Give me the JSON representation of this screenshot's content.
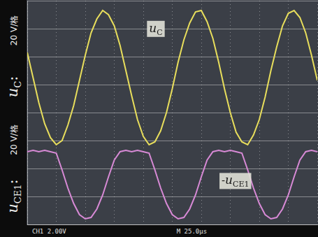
{
  "chart_data": {
    "type": "line",
    "x": [
      0,
      5,
      10,
      15,
      20,
      25,
      30,
      35,
      40,
      45,
      50,
      55,
      60,
      65,
      70,
      75,
      80,
      85,
      90,
      95,
      100,
      105,
      110,
      115,
      120,
      125,
      130,
      135,
      140,
      145,
      150,
      155,
      160,
      165,
      170,
      175,
      180,
      185,
      190,
      195,
      200,
      205,
      210,
      215,
      220,
      225,
      230,
      235,
      240,
      245,
      250
    ],
    "series": [
      {
        "name": "uC",
        "color": "#e8de5c",
        "values": [
          43,
          25,
          7,
          -8,
          -18,
          -23,
          -20,
          -9,
          5,
          23,
          41,
          57,
          67,
          73,
          70,
          62,
          48,
          30,
          12,
          -5,
          -17,
          -23,
          -21,
          -13,
          0,
          17,
          36,
          52,
          64,
          72,
          73,
          65,
          53,
          36,
          17,
          0,
          -14,
          -21,
          -23,
          -16,
          -5,
          11,
          30,
          47,
          62,
          71,
          73,
          68,
          57,
          41,
          23
        ]
      },
      {
        "name": "-uCE1",
        "color": "#d88ad6",
        "values": [
          -28,
          -27,
          -28,
          -27,
          -28,
          -29,
          -41,
          -54,
          -65,
          -73,
          -76,
          -75,
          -69,
          -59,
          -46,
          -34,
          -28,
          -27,
          -28,
          -27,
          -28,
          -29,
          -41,
          -54,
          -65,
          -73,
          -76,
          -75,
          -69,
          -59,
          -46,
          -34,
          -28,
          -27,
          -28,
          -27,
          -28,
          -29,
          -41,
          -54,
          -65,
          -73,
          -76,
          -75,
          -69,
          -59,
          -46,
          -34,
          -28,
          -27,
          -28
        ]
      }
    ],
    "xlim": [
      0,
      250
    ],
    "xticks": [
      0,
      25,
      50,
      75,
      100,
      125,
      150,
      175,
      200,
      225,
      250
    ],
    "ylim": [
      -80,
      80
    ],
    "yticks": [
      -80,
      -60,
      -40,
      -20,
      0,
      20,
      40,
      60,
      80
    ],
    "grid": true,
    "tick_labels": false,
    "side_labels": [
      {
        "name": "uC:",
        "scale": "20 V/格"
      },
      {
        "name": "uCE1:",
        "scale": "20 V/格"
      }
    ],
    "readouts": [
      "CH1 2.00V",
      "M 25.0μs"
    ]
  }
}
